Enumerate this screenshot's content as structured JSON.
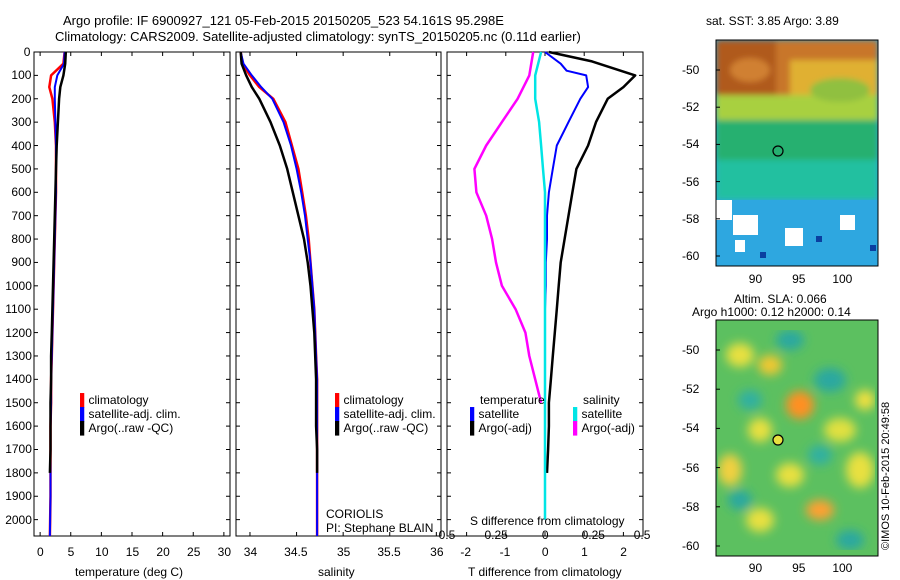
{
  "title": {
    "line1": "Argo profile: IF 6900927_121 05-Feb-2015 20150205_523 54.161S 95.298E",
    "line2": "Climatology: CARS2009. Satellite-adjusted climatology: synTS_20150205.nc (0.11d earlier)"
  },
  "depth_ticks": [
    "0",
    "100",
    "200",
    "300",
    "400",
    "500",
    "600",
    "700",
    "800",
    "900",
    "1000",
    "1100",
    "1200",
    "1300",
    "1400",
    "1500",
    "1600",
    "1700",
    "1800",
    "1900",
    "2000"
  ],
  "panel_temp": {
    "xlabel": "temperature (deg C)",
    "xticks": [
      "0",
      "5",
      "10",
      "15",
      "20",
      "25",
      "30"
    ],
    "legend": [
      "climatology",
      "satellite-adj. clim.",
      "Argo(..raw -QC)"
    ]
  },
  "panel_sal": {
    "xlabel": "salinity",
    "xticks": [
      "34",
      "34.5",
      "35",
      "35.5",
      "36"
    ],
    "legend": [
      "climatology",
      "satellite-adj. clim.",
      "Argo(..raw -QC)"
    ],
    "note1": "CORIOLIS",
    "note2": "PI: Stephane BLAIN"
  },
  "panel_diff": {
    "xlabel": "T difference from climatology",
    "xticks": [
      "-2",
      "-1",
      "0",
      "1",
      "2"
    ],
    "top_label": "S difference from climatology",
    "top_ticks": [
      "-0.5",
      "-0.25",
      "0",
      "0.25",
      "0.5"
    ],
    "legend_head_t": "temperature",
    "legend_head_s": "salinity",
    "legend_t": [
      "satellite",
      "Argo(-adj)"
    ],
    "legend_s": [
      "satellite",
      "Argo(-adj)"
    ]
  },
  "map_sst": {
    "title": "sat. SST: 3.85 Argo: 3.89",
    "yticks": [
      "-50",
      "-52",
      "-54",
      "-56",
      "-58",
      "-60"
    ],
    "xticks": [
      "90",
      "95",
      "100"
    ]
  },
  "map_sla": {
    "title1": "Altim. SLA: 0.066",
    "title2": "Argo h1000: 0.12 h2000: 0.14",
    "yticks": [
      "-50",
      "-52",
      "-54",
      "-56",
      "-58",
      "-60"
    ],
    "xticks": [
      "90",
      "95",
      "100"
    ]
  },
  "credit": "©IMOS 10-Feb-2015 20:49:58",
  "colors": {
    "clim": "#ff0000",
    "sat": "#0000ff",
    "argo": "#000000",
    "sat_s": "#00e5e5",
    "argo_s": "#ff00ff"
  },
  "chart_data": [
    {
      "type": "line",
      "xlabel": "temperature (deg C)",
      "ylabel": "",
      "xlim": [
        -1,
        31
      ],
      "ylim": [
        2070,
        0
      ],
      "series": [
        {
          "name": "climatology",
          "x": [
            4.0,
            3.8,
            1.8,
            1.5,
            2.0,
            2.4,
            2.6,
            2.6,
            2.6,
            2.5,
            2.4,
            2.3,
            2.2,
            2.1,
            2.0,
            1.9,
            1.8,
            1.8,
            1.7,
            1.7,
            1.7,
            1.7,
            1.6
          ],
          "y": [
            0,
            50,
            100,
            150,
            200,
            300,
            400,
            500,
            600,
            700,
            800,
            900,
            1000,
            1100,
            1200,
            1300,
            1400,
            1500,
            1600,
            1700,
            1800,
            1900,
            2070
          ]
        },
        {
          "name": "satellite-adj. clim.",
          "x": [
            4.0,
            3.9,
            2.8,
            2.4,
            2.4,
            2.5,
            2.6,
            2.6,
            2.6,
            2.5,
            2.4,
            2.3,
            2.2,
            2.1,
            2.0,
            1.9,
            1.8,
            1.8,
            1.7,
            1.7,
            1.7,
            1.7,
            1.6
          ],
          "y": [
            0,
            50,
            100,
            150,
            200,
            300,
            400,
            500,
            600,
            700,
            800,
            900,
            1000,
            1100,
            1200,
            1300,
            1400,
            1500,
            1600,
            1700,
            1800,
            1900,
            2070
          ]
        },
        {
          "name": "Argo(..raw -QC)",
          "x": [
            4.2,
            4.1,
            3.8,
            3.3,
            3.1,
            2.9,
            2.7,
            2.6,
            2.5,
            2.4,
            2.3,
            2.2,
            2.1,
            2.0,
            1.9,
            1.8,
            1.8,
            1.7,
            1.7,
            1.7,
            1.6
          ],
          "y": [
            0,
            50,
            100,
            150,
            200,
            300,
            400,
            500,
            600,
            700,
            800,
            900,
            1000,
            1100,
            1200,
            1300,
            1400,
            1500,
            1600,
            1700,
            1800
          ]
        }
      ]
    },
    {
      "type": "line",
      "xlabel": "salinity",
      "ylabel": "",
      "xlim": [
        33.85,
        36.05
      ],
      "ylim": [
        2070,
        0
      ],
      "series": [
        {
          "name": "climatology",
          "x": [
            33.9,
            33.92,
            34.0,
            34.1,
            34.25,
            34.38,
            34.45,
            34.52,
            34.56,
            34.6,
            34.63,
            34.65,
            34.67,
            34.69,
            34.7,
            34.71,
            34.72,
            34.72,
            34.72,
            34.72,
            34.72,
            34.72,
            34.72
          ],
          "y": [
            0,
            50,
            100,
            150,
            200,
            300,
            400,
            500,
            600,
            700,
            800,
            900,
            1000,
            1100,
            1200,
            1300,
            1400,
            1500,
            1600,
            1700,
            1800,
            1900,
            2070
          ]
        },
        {
          "name": "satellite-adj. clim.",
          "x": [
            33.9,
            33.93,
            34.02,
            34.12,
            34.24,
            34.36,
            34.44,
            34.5,
            34.55,
            34.59,
            34.62,
            34.65,
            34.67,
            34.69,
            34.7,
            34.71,
            34.72,
            34.72,
            34.72,
            34.72,
            34.72,
            34.72,
            34.72
          ],
          "y": [
            0,
            50,
            100,
            150,
            200,
            300,
            400,
            500,
            600,
            700,
            800,
            900,
            1000,
            1100,
            1200,
            1300,
            1400,
            1500,
            1600,
            1700,
            1800,
            1900,
            2070
          ]
        },
        {
          "name": "Argo(..raw -QC)",
          "x": [
            33.9,
            33.91,
            33.96,
            34.02,
            34.1,
            34.22,
            34.32,
            34.4,
            34.46,
            34.52,
            34.58,
            34.62,
            34.65,
            34.67,
            34.69,
            34.7,
            34.71,
            34.71,
            34.71,
            34.72,
            34.72
          ],
          "y": [
            0,
            50,
            100,
            150,
            200,
            300,
            400,
            500,
            600,
            700,
            800,
            900,
            1000,
            1100,
            1200,
            1300,
            1400,
            1500,
            1600,
            1700,
            1800
          ]
        }
      ]
    },
    {
      "type": "line",
      "xlabel": "T difference from climatology",
      "ylabel": "",
      "xlim": [
        -2.5,
        2.5
      ],
      "ylim": [
        2070,
        0
      ],
      "series": [
        {
          "name": "temperature satellite",
          "x": [
            0.0,
            0.4,
            0.55,
            1.05,
            1.1,
            0.9,
            0.6,
            0.3,
            0.2,
            0.1,
            0.05,
            0.05,
            0.02,
            0.02,
            0.0,
            0.0,
            0.0,
            0.0,
            0.0,
            0.0,
            0.0,
            0.0
          ],
          "y": [
            0,
            50,
            80,
            100,
            150,
            200,
            300,
            400,
            500,
            600,
            700,
            800,
            900,
            1000,
            1100,
            1200,
            1300,
            1400,
            1500,
            1600,
            1800,
            2000
          ]
        },
        {
          "name": "temperature Argo(-adj)",
          "x": [
            0.1,
            1.2,
            2.3,
            2.0,
            1.6,
            1.3,
            1.1,
            0.8,
            0.7,
            0.6,
            0.5,
            0.4,
            0.35,
            0.3,
            0.25,
            0.2,
            0.15,
            0.1,
            0.1,
            0.08,
            0.05
          ],
          "y": [
            0,
            40,
            100,
            150,
            200,
            300,
            400,
            500,
            600,
            700,
            800,
            900,
            1000,
            1100,
            1200,
            1300,
            1400,
            1500,
            1600,
            1700,
            1800
          ]
        },
        {
          "name": "salinity satellite",
          "x": [
            -0.02,
            -0.05,
            -0.05,
            -0.03,
            -0.02,
            -0.01,
            0.0,
            0.0,
            0.0,
            0.0,
            0.0,
            0.0,
            0.0,
            0.0,
            0.0,
            0.0,
            0.0
          ],
          "y": [
            0,
            100,
            200,
            300,
            400,
            500,
            600,
            700,
            800,
            900,
            1000,
            1100,
            1200,
            1400,
            1600,
            1800,
            2000
          ]
        },
        {
          "name": "salinity Argo(-adj)",
          "x": [
            -0.06,
            -0.08,
            -0.14,
            -0.22,
            -0.3,
            -0.36,
            -0.35,
            -0.3,
            -0.27,
            -0.25,
            -0.22,
            -0.15,
            -0.1,
            -0.08,
            -0.05,
            -0.02
          ],
          "y": [
            0,
            100,
            200,
            300,
            400,
            500,
            600,
            700,
            800,
            900,
            1000,
            1100,
            1200,
            1300,
            1400,
            1500
          ]
        }
      ]
    }
  ]
}
